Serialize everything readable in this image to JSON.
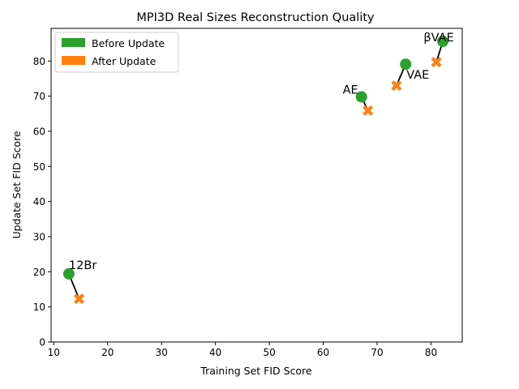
{
  "chart_data": {
    "type": "scatter",
    "title": "MPI3D Real Sizes Reconstruction Quality",
    "xlabel": "Training Set FID Score",
    "ylabel": "Update Set FID Score",
    "xlim": [
      9.5,
      85.8
    ],
    "ylim": [
      0,
      89.3
    ],
    "xticks": [
      "10",
      "20",
      "30",
      "40",
      "50",
      "60",
      "70",
      "80"
    ],
    "yticks": [
      "0",
      "10",
      "20",
      "30",
      "40",
      "50",
      "60",
      "70",
      "80"
    ],
    "grid": false,
    "legend_position": "top-left",
    "series": [
      {
        "name": "Before Update",
        "color": "#2ca02c",
        "marker": "circle"
      },
      {
        "name": "After Update",
        "color": "#ff7f0e",
        "marker": "x"
      }
    ],
    "models": [
      {
        "label": "12Br",
        "before": [
          12.8,
          19.4
        ],
        "after": [
          14.7,
          12.3
        ]
      },
      {
        "label": "AE",
        "before": [
          67.1,
          69.8
        ],
        "after": [
          68.3,
          65.9
        ]
      },
      {
        "label": "VAE",
        "before": [
          75.3,
          79.1
        ],
        "after": [
          73.6,
          73.0
        ]
      },
      {
        "label": "βVAE",
        "before": [
          82.2,
          85.6
        ],
        "after": [
          81.0,
          79.7
        ]
      }
    ],
    "connector_color": "#000000"
  }
}
